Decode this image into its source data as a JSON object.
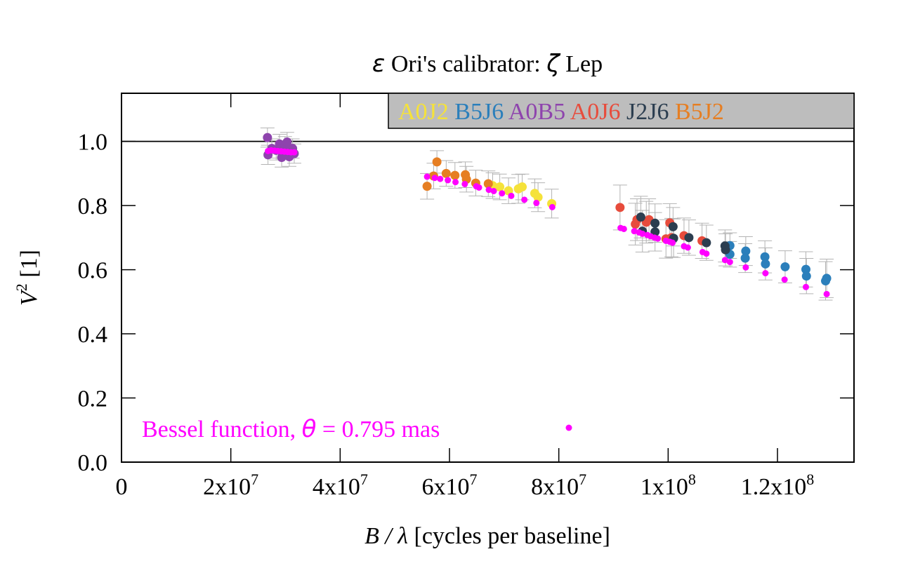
{
  "chart_data": {
    "type": "scatter",
    "title": {
      "star": "ε",
      "mid": " Ori's calibrator: ",
      "cal": "ζ",
      "end": " Lep"
    },
    "xlabel": {
      "var": "B / λ",
      "rest": " [cycles per baseline]"
    },
    "ylabel": {
      "base": "V",
      "sup": "2",
      "rest": " [1]"
    },
    "xlim": [
      0,
      134000000
    ],
    "ylim": [
      0,
      1.15
    ],
    "reference_line": 1.0,
    "x_ticks": [
      {
        "value": 0,
        "base": "0",
        "exp": ""
      },
      {
        "value": 20000000,
        "base": "2x10",
        "exp": "7"
      },
      {
        "value": 40000000,
        "base": "4x10",
        "exp": "7"
      },
      {
        "value": 60000000,
        "base": "6x10",
        "exp": "7"
      },
      {
        "value": 80000000,
        "base": "8x10",
        "exp": "7"
      },
      {
        "value": 100000000,
        "base": "1x10",
        "exp": "8"
      },
      {
        "value": 120000000,
        "base": "1.2x10",
        "exp": "8"
      }
    ],
    "y_ticks": [
      {
        "value": 0.0,
        "label": "0.0"
      },
      {
        "value": 0.2,
        "label": "0.2"
      },
      {
        "value": 0.4,
        "label": "0.4"
      },
      {
        "value": 0.6,
        "label": "0.6"
      },
      {
        "value": 0.8,
        "label": "0.8"
      },
      {
        "value": 1.0,
        "label": "1.0"
      }
    ],
    "legend_position": "top-right",
    "legend_background": "#bdbdbd",
    "series": [
      {
        "name": "A0J2",
        "color": "#f5e23a",
        "points": [
          [
            67900000,
            0.862,
            0.04
          ],
          [
            69200000,
            0.858,
            0.04
          ],
          [
            70800000,
            0.846,
            0.04
          ],
          [
            72600000,
            0.852,
            0.045
          ],
          [
            73300000,
            0.858,
            0.04
          ],
          [
            75600000,
            0.838,
            0.045
          ],
          [
            76200000,
            0.826,
            0.045
          ],
          [
            78700000,
            0.806,
            0.045
          ]
        ]
      },
      {
        "name": "B5J6",
        "color": "#2b7fbb",
        "points": [
          [
            111300000,
            0.675,
            0.04
          ],
          [
            111300000,
            0.648,
            0.04
          ],
          [
            114200000,
            0.658,
            0.045
          ],
          [
            114100000,
            0.636,
            0.045
          ],
          [
            117700000,
            0.64,
            0.05
          ],
          [
            117800000,
            0.618,
            0.05
          ],
          [
            121400000,
            0.609,
            0.05
          ],
          [
            125200000,
            0.601,
            0.055
          ],
          [
            125300000,
            0.58,
            0.055
          ],
          [
            129000000,
            0.573,
            0.06
          ],
          [
            128800000,
            0.565,
            0.06
          ]
        ]
      },
      {
        "name": "A0B5",
        "color": "#8e44ad",
        "points": [
          [
            26700000,
            1.012,
            0.03
          ],
          [
            26800000,
            0.958,
            0.03
          ],
          [
            27500000,
            0.978,
            0.03
          ],
          [
            28300000,
            0.972,
            0.03
          ],
          [
            28900000,
            0.992,
            0.03
          ],
          [
            29300000,
            0.95,
            0.03
          ],
          [
            29900000,
            0.985,
            0.03
          ],
          [
            30300000,
            0.998,
            0.03
          ],
          [
            30700000,
            0.952,
            0.03
          ],
          [
            31300000,
            0.978,
            0.03
          ],
          [
            31600000,
            0.962,
            0.03
          ]
        ]
      },
      {
        "name": "A0J6",
        "color": "#e74c3c",
        "points": [
          [
            91200000,
            0.794,
            0.07
          ],
          [
            94000000,
            0.742,
            0.065
          ],
          [
            94300000,
            0.756,
            0.065
          ],
          [
            96000000,
            0.748,
            0.065
          ],
          [
            96500000,
            0.756,
            0.065
          ],
          [
            99600000,
            0.696,
            0.06
          ],
          [
            100300000,
            0.746,
            0.06
          ],
          [
            100600000,
            0.7,
            0.06
          ],
          [
            102900000,
            0.706,
            0.055
          ],
          [
            106200000,
            0.69,
            0.055
          ]
        ]
      },
      {
        "name": "J2J6",
        "color": "#2c3e50",
        "points": [
          [
            95000000,
            0.764,
            0.065
          ],
          [
            95300000,
            0.72,
            0.065
          ],
          [
            97600000,
            0.745,
            0.06
          ],
          [
            97600000,
            0.718,
            0.06
          ],
          [
            100900000,
            0.734,
            0.06
          ],
          [
            101000000,
            0.698,
            0.06
          ],
          [
            103800000,
            0.7,
            0.055
          ],
          [
            107000000,
            0.684,
            0.055
          ],
          [
            110400000,
            0.674,
            0.05
          ],
          [
            110500000,
            0.662,
            0.05
          ]
        ]
      },
      {
        "name": "B5J2",
        "color": "#e67e22",
        "points": [
          [
            55900000,
            0.86,
            0.04
          ],
          [
            57100000,
            0.892,
            0.04
          ],
          [
            57700000,
            0.936,
            0.035
          ],
          [
            59400000,
            0.9,
            0.04
          ],
          [
            61000000,
            0.894,
            0.04
          ],
          [
            62900000,
            0.896,
            0.04
          ],
          [
            63100000,
            0.882,
            0.04
          ],
          [
            64800000,
            0.87,
            0.04
          ],
          [
            67100000,
            0.868,
            0.04
          ]
        ]
      }
    ],
    "model": {
      "label_prefix": "Bessel function, ",
      "label_symbol": "θ",
      "label_value": " = 0.795 mas",
      "color": "#ff00ff",
      "points": [
        [
          26800000,
          0.97
        ],
        [
          27400000,
          0.972
        ],
        [
          28000000,
          0.971
        ],
        [
          28600000,
          0.97
        ],
        [
          29200000,
          0.969
        ],
        [
          29800000,
          0.968
        ],
        [
          30400000,
          0.967
        ],
        [
          31000000,
          0.966
        ],
        [
          31600000,
          0.966
        ],
        [
          55900000,
          0.89
        ],
        [
          57300000,
          0.886
        ],
        [
          58300000,
          0.883
        ],
        [
          59700000,
          0.879
        ],
        [
          61100000,
          0.873
        ],
        [
          62800000,
          0.867
        ],
        [
          64900000,
          0.86
        ],
        [
          65400000,
          0.856
        ],
        [
          67200000,
          0.849
        ],
        [
          68100000,
          0.845
        ],
        [
          69600000,
          0.838
        ],
        [
          71300000,
          0.83
        ],
        [
          73700000,
          0.818
        ],
        [
          75900000,
          0.808
        ],
        [
          78800000,
          0.795
        ],
        [
          91300000,
          0.73
        ],
        [
          91900000,
          0.727
        ],
        [
          93800000,
          0.72
        ],
        [
          94700000,
          0.716
        ],
        [
          95300000,
          0.712
        ],
        [
          96200000,
          0.708
        ],
        [
          96800000,
          0.704
        ],
        [
          97500000,
          0.7
        ],
        [
          98100000,
          0.697
        ],
        [
          99600000,
          0.69
        ],
        [
          100300000,
          0.687
        ],
        [
          100800000,
          0.684
        ],
        [
          102900000,
          0.673
        ],
        [
          103600000,
          0.669
        ],
        [
          106300000,
          0.655
        ],
        [
          107000000,
          0.65
        ],
        [
          110400000,
          0.63
        ],
        [
          111300000,
          0.624
        ],
        [
          114200000,
          0.607
        ],
        [
          117800000,
          0.589
        ],
        [
          121300000,
          0.569
        ],
        [
          125200000,
          0.546
        ],
        [
          129000000,
          0.524
        ]
      ]
    }
  }
}
